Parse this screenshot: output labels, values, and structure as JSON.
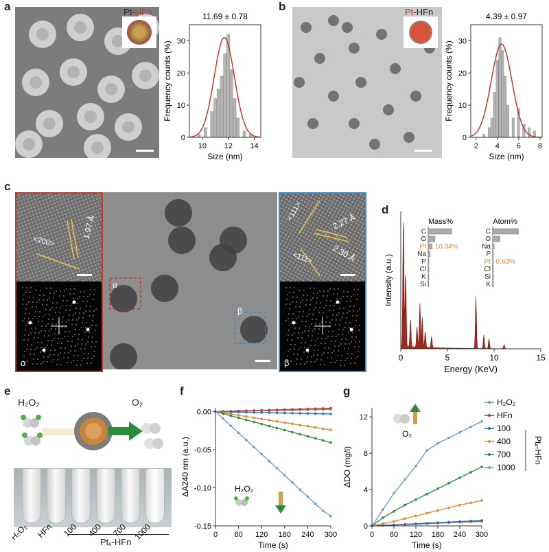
{
  "panels": {
    "a": {
      "letter": "a",
      "inset_title_prefix": "Pt-",
      "inset_title_suffix": "HFn",
      "mean_label": "11.69 ± 0.78",
      "xlabel": "Size (nm)",
      "ylabel": "Frequency counts (%)",
      "xticks": [
        "10",
        "12",
        "14"
      ],
      "yticks": [
        "0",
        "10",
        "20",
        "30"
      ]
    },
    "b": {
      "letter": "b",
      "inset_title_prefix": "Pt",
      "inset_title_suffix": "-HFn",
      "mean_label": "4.39 ± 0.97",
      "xlabel": "Size (nm)",
      "ylabel": "Frequency counts (%)",
      "xticks": [
        "2",
        "4",
        "6",
        "8"
      ],
      "yticks": [
        "0",
        "10",
        "20",
        "30"
      ]
    },
    "c": {
      "letter": "c",
      "d_spacing_a": "1.97 Å",
      "plane_a": "<200>",
      "d_spacing_b1": "2.27 Å",
      "d_spacing_b2": "2.30 Å",
      "plane_b1": "<111>",
      "plane_b2": "<111>",
      "alpha": "α",
      "beta": "β"
    },
    "d": {
      "letter": "d",
      "xlabel": "Energy (KeV)",
      "ylabel": "Intensity (a.u.)",
      "xticks": [
        "0",
        "5",
        "10",
        "15"
      ],
      "mass_title": "Mass%",
      "atom_title": "Atom%",
      "mass_elements": [
        "C",
        "O",
        "Pt",
        "Na",
        "P",
        "Cl",
        "K",
        "Si"
      ],
      "atom_elements": [
        "C",
        "O",
        "Na",
        "P",
        "Pt",
        "Cl",
        "Si",
        "K"
      ],
      "pt_mass": "10.34%",
      "pt_atom": "0.83%"
    },
    "e": {
      "letter": "e",
      "reactant": "H₂O₂",
      "product": "O₂",
      "tube_labels": [
        "H₂O₂",
        "HFn",
        "100",
        "400",
        "700",
        "1000"
      ],
      "group_label": "Ptₓ-HFn"
    },
    "f": {
      "letter": "f",
      "xlabel": "Time (s)",
      "ylabel": "ΔA240 nm (a.u.)",
      "annotation": "H₂O₂",
      "xticks": [
        "0",
        "60",
        "120",
        "180",
        "240",
        "300"
      ],
      "yticks": [
        "0.00",
        "-0.05",
        "-0.10",
        "-0.15"
      ]
    },
    "g": {
      "letter": "g",
      "xlabel": "Time (s)",
      "ylabel": "ΔDO (mg/l)",
      "annotation": "O₂",
      "xticks": [
        "0",
        "60",
        "120",
        "180",
        "240",
        "300"
      ],
      "yticks": [
        "0",
        "4",
        "8",
        "12"
      ],
      "legend": [
        "H₂O₂",
        "HFn",
        "100",
        "400",
        "700",
        "1000"
      ],
      "legend_group": "Ptₓ-HFn"
    }
  },
  "colors": {
    "accent_red": "#c0392b",
    "alpha_box": "#c0392b",
    "beta_box": "#3a8cc4",
    "pt_orange": "#e08a2e",
    "hist_bar": "#b5b5b5",
    "fit": "#c0392b"
  },
  "chart_data": [
    {
      "type": "bar",
      "id": "hist_a",
      "title": "11.69 ± 0.78",
      "xlabel": "Size (nm)",
      "ylabel": "Frequency counts (%)",
      "xlim": [
        9,
        14.5
      ],
      "ylim": [
        0,
        35
      ],
      "bins": [
        9.75,
        10.25,
        10.75,
        11.0,
        11.25,
        11.5,
        11.75,
        12.0,
        12.25,
        12.5,
        12.75,
        13.25,
        13.75
      ],
      "values": [
        1,
        3,
        8,
        12,
        15,
        19,
        26,
        32,
        21,
        12,
        6,
        2,
        1
      ],
      "fit": {
        "mean": 11.69,
        "sd": 0.78,
        "peak": 31
      }
    },
    {
      "type": "bar",
      "id": "hist_b",
      "title": "4.39 ± 0.97",
      "xlabel": "Size (nm)",
      "ylabel": "Frequency counts (%)",
      "xlim": [
        1.5,
        8.2
      ],
      "ylim": [
        0,
        35
      ],
      "bins": [
        2.75,
        3.25,
        3.5,
        3.75,
        4.0,
        4.25,
        4.5,
        4.75,
        5.0,
        5.5,
        6.0,
        6.5,
        7.0,
        7.5
      ],
      "values": [
        1,
        3,
        6,
        14,
        24,
        31,
        27,
        19,
        10,
        6,
        9,
        4,
        3,
        2
      ],
      "fit": {
        "mean": 4.39,
        "sd": 0.97,
        "peak": 29
      }
    },
    {
      "type": "line",
      "id": "f",
      "xlabel": "Time (s)",
      "ylabel": "ΔA240 nm (a.u.)",
      "xlim": [
        0,
        300
      ],
      "ylim": [
        -0.15,
        0.005
      ],
      "x": [
        0,
        20,
        40,
        60,
        80,
        100,
        120,
        140,
        160,
        180,
        200,
        220,
        240,
        260,
        280,
        300
      ],
      "series": [
        {
          "name": "H₂O₂",
          "color": "#7f8c8d",
          "values": [
            0,
            0.0002,
            0.0004,
            0.0006,
            0.0008,
            0.001,
            0.0012,
            0.0014,
            0.0016,
            0.0018,
            0.002,
            0.0022,
            0.0024,
            0.0026,
            0.0028,
            0.003
          ]
        },
        {
          "name": "HFn",
          "color": "#c0392b",
          "values": [
            0,
            0.0003,
            0.0006,
            0.0009,
            0.0012,
            0.0015,
            0.0018,
            0.0021,
            0.0024,
            0.0027,
            0.003,
            0.0033,
            0.0036,
            0.0039,
            0.0042,
            0.0045
          ]
        },
        {
          "name": "100",
          "color": "#2c6fb5",
          "values": [
            0,
            -0.0002,
            -0.0004,
            -0.0006,
            -0.0008,
            -0.001,
            -0.0012,
            -0.0014,
            -0.0016,
            -0.0018,
            -0.002,
            -0.0022,
            -0.0024,
            -0.0026,
            -0.0028,
            -0.003
          ]
        },
        {
          "name": "400",
          "color": "#e08a2e",
          "values": [
            0,
            -0.0016,
            -0.0032,
            -0.0048,
            -0.0064,
            -0.008,
            -0.0096,
            -0.0112,
            -0.0128,
            -0.0144,
            -0.016,
            -0.0176,
            -0.0192,
            -0.0208,
            -0.0224,
            -0.024
          ]
        },
        {
          "name": "700",
          "color": "#2e8b3e",
          "values": [
            0,
            -0.0027,
            -0.0054,
            -0.0081,
            -0.0108,
            -0.0135,
            -0.0162,
            -0.0189,
            -0.0216,
            -0.0243,
            -0.027,
            -0.0297,
            -0.0324,
            -0.0351,
            -0.0378,
            -0.0405
          ]
        },
        {
          "name": "1000",
          "color": "#6a9fc7",
          "values": [
            0,
            -0.0093,
            -0.0186,
            -0.0279,
            -0.0372,
            -0.0465,
            -0.0558,
            -0.0651,
            -0.0744,
            -0.0837,
            -0.093,
            -0.1023,
            -0.1116,
            -0.1209,
            -0.1302,
            -0.137
          ]
        }
      ]
    },
    {
      "type": "line",
      "id": "g",
      "xlabel": "Time (s)",
      "ylabel": "ΔDO (mg/l)",
      "xlim": [
        0,
        300
      ],
      "ylim": [
        0,
        13
      ],
      "x": [
        0,
        30,
        60,
        90,
        120,
        150,
        180,
        210,
        240,
        270,
        300
      ],
      "series": [
        {
          "name": "H₂O₂",
          "color": "#7f8c8d",
          "values": [
            0,
            0.05,
            0.1,
            0.15,
            0.2,
            0.25,
            0.3,
            0.35,
            0.4,
            0.45,
            0.5
          ]
        },
        {
          "name": "HFn",
          "color": "#c0392b",
          "values": [
            0,
            0.05,
            0.1,
            0.16,
            0.22,
            0.28,
            0.34,
            0.4,
            0.45,
            0.5,
            0.55
          ]
        },
        {
          "name": "100",
          "color": "#2c6fb5",
          "values": [
            0,
            0.06,
            0.12,
            0.18,
            0.24,
            0.3,
            0.36,
            0.42,
            0.48,
            0.54,
            0.6
          ]
        },
        {
          "name": "400",
          "color": "#e08a2e",
          "values": [
            0,
            0.25,
            0.5,
            0.8,
            1.1,
            1.4,
            1.7,
            2.0,
            2.3,
            2.55,
            2.8
          ]
        },
        {
          "name": "700",
          "color": "#2e8b3e",
          "values": [
            0,
            0.9,
            1.6,
            2.3,
            2.9,
            3.5,
            4.1,
            4.7,
            5.3,
            5.9,
            6.5
          ]
        },
        {
          "name": "1000",
          "color": "#6a9fc7",
          "values": [
            0,
            1.8,
            3.6,
            5.1,
            6.6,
            8.3,
            9.1,
            9.7,
            10.3,
            10.9,
            11.5
          ]
        }
      ]
    },
    {
      "type": "bar",
      "id": "d",
      "xlabel": "Energy (KeV)",
      "ylabel": "Intensity (a.u.)",
      "xlim": [
        0,
        15
      ],
      "ylim": [
        0,
        1
      ],
      "x": [
        0.28,
        0.52,
        1.04,
        1.74,
        2.05,
        2.3,
        2.62,
        3.3,
        8.05,
        8.9,
        9.45,
        11.07
      ],
      "values": [
        0.95,
        0.55,
        0.2,
        0.15,
        0.32,
        0.22,
        0.12,
        0.08,
        0.38,
        0.1,
        0.07,
        0.03
      ]
    },
    {
      "type": "bar",
      "id": "d_mass",
      "title": "Mass%",
      "categories": [
        "C",
        "O",
        "Pt",
        "Na",
        "P",
        "Cl",
        "K",
        "Si"
      ],
      "values": [
        62,
        18,
        10.34,
        5,
        2,
        1.2,
        0.8,
        0.5
      ]
    },
    {
      "type": "bar",
      "id": "d_atom",
      "title": "Atom%",
      "categories": [
        "C",
        "O",
        "Na",
        "P",
        "Pt",
        "Cl",
        "Si",
        "K"
      ],
      "values": [
        72,
        20,
        4,
        1.5,
        0.83,
        0.5,
        0.3,
        0.2
      ]
    }
  ]
}
